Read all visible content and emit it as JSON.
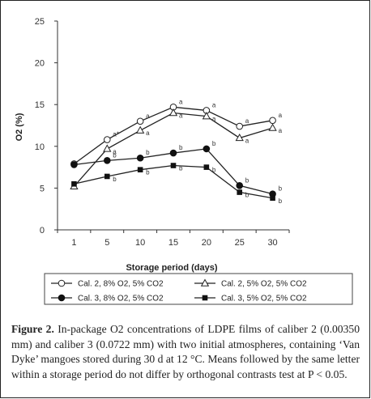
{
  "chart_data": {
    "type": "line",
    "title": "",
    "xlabel": "Storage period (days)",
    "ylabel": "O2 (%)",
    "x": [
      1,
      5,
      10,
      15,
      20,
      25,
      30
    ],
    "ylim": [
      0,
      25
    ],
    "yticks": [
      0,
      5,
      10,
      15,
      20,
      25
    ],
    "grid": false,
    "legend_placement": "bottom",
    "series": [
      {
        "name": "Cal. 2, 8% O2, 5% CO2",
        "marker": "circle-open",
        "values": [
          7.9,
          10.8,
          13.0,
          14.7,
          14.3,
          12.4,
          13.1
        ],
        "labels": [
          "",
          "a*",
          "a",
          "a",
          "a",
          "a",
          "a"
        ]
      },
      {
        "name": "Cal. 2, 5% O2, 5% CO2",
        "marker": "triangle-open",
        "values": [
          5.2,
          9.7,
          11.9,
          14.0,
          13.6,
          11.0,
          12.2
        ],
        "labels": [
          "",
          "a",
          "a",
          "a",
          "a",
          "a",
          "a"
        ]
      },
      {
        "name": "Cal. 3, 8% O2, 5% CO2",
        "marker": "circle-filled",
        "values": [
          7.8,
          8.3,
          8.6,
          9.2,
          9.7,
          5.3,
          4.3
        ],
        "labels": [
          "",
          "b",
          "b",
          "b",
          "b",
          "b",
          "b"
        ]
      },
      {
        "name": "Cal. 3, 5% O2, 5% CO2",
        "marker": "square-filled",
        "values": [
          5.5,
          6.4,
          7.2,
          7.7,
          7.5,
          4.5,
          3.8
        ],
        "labels": [
          "",
          "b",
          "b",
          "b",
          "b",
          "b",
          "b"
        ]
      }
    ]
  },
  "caption": {
    "label": "Figure 2.",
    "text": "In-package O2 concentrations of LDPE films of caliber 2 (0.00350 mm) and caliber 3 (0.0722 mm) with two initial atmospheres, containing ‘Van Dyke’ mangoes stored during 30 d at 12 °C. Means followed by the same letter within a storage period do not differ by orthogonal contrasts test at P < 0.05."
  }
}
